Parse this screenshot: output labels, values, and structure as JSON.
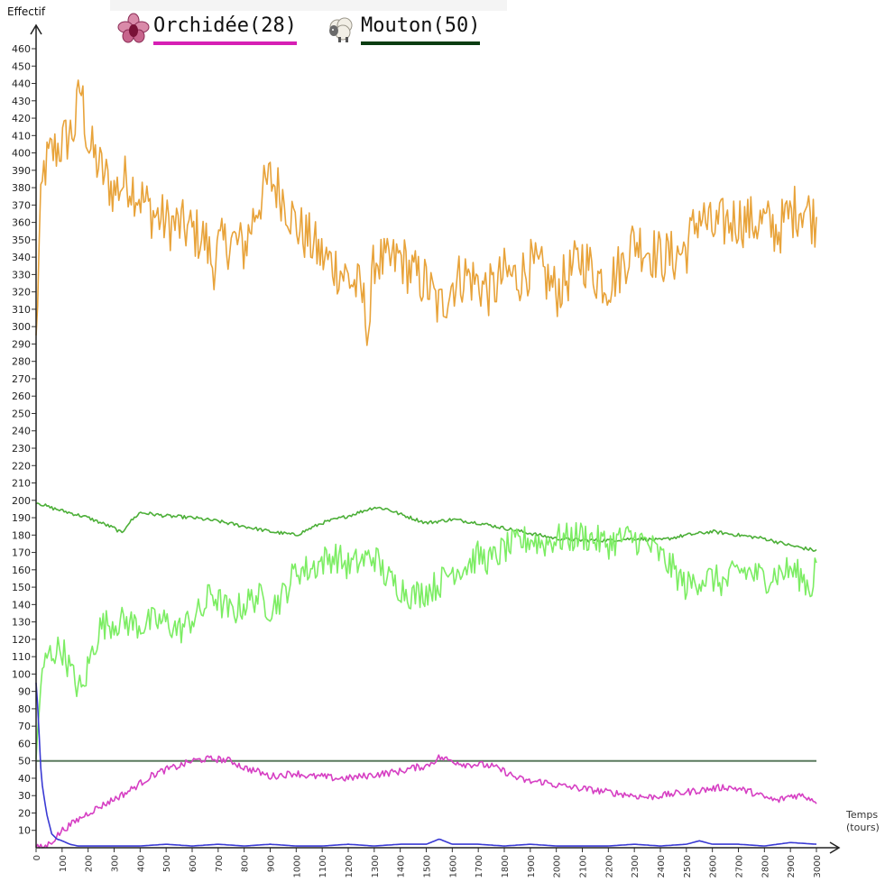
{
  "legend": {
    "items": [
      {
        "icon": "orchid-icon",
        "label": "Orchidée(28)",
        "underline": "#d61fb4"
      },
      {
        "icon": "sheep-icon",
        "label": "Mouton(50)",
        "underline": "#0a3d12"
      }
    ]
  },
  "chart_data": {
    "type": "line",
    "ylabel": "Effectif",
    "xlabel": "Temps (tours)",
    "xlabel_lines": [
      "Temps",
      "(tours)"
    ],
    "xlim": [
      0,
      3000
    ],
    "ylim": [
      0,
      460
    ],
    "yticks": [
      10,
      20,
      30,
      40,
      50,
      60,
      70,
      80,
      90,
      100,
      110,
      120,
      130,
      140,
      150,
      160,
      170,
      180,
      190,
      200,
      210,
      220,
      230,
      240,
      250,
      260,
      270,
      280,
      290,
      300,
      310,
      320,
      330,
      340,
      350,
      360,
      370,
      380,
      390,
      400,
      410,
      420,
      430,
      440,
      450,
      460
    ],
    "xticks": [
      0,
      100,
      200,
      300,
      400,
      500,
      600,
      700,
      800,
      900,
      1000,
      1100,
      1200,
      1300,
      1400,
      1500,
      1600,
      1700,
      1800,
      1900,
      2000,
      2100,
      2200,
      2300,
      2400,
      2500,
      2600,
      2700,
      2800,
      2900,
      3000
    ],
    "reference_line": {
      "y": 50,
      "color": "#5a7a5e"
    },
    "series": [
      {
        "color": "#e8a33a",
        "noise": 16,
        "x": [
          0,
          15,
          30,
          60,
          100,
          150,
          170,
          200,
          250,
          300,
          350,
          400,
          450,
          500,
          550,
          600,
          650,
          680,
          700,
          750,
          800,
          850,
          900,
          950,
          1000,
          1050,
          1100,
          1150,
          1200,
          1250,
          1280,
          1300,
          1350,
          1400,
          1450,
          1500,
          1550,
          1600,
          1650,
          1700,
          1750,
          1800,
          1850,
          1900,
          1950,
          2000,
          2050,
          2100,
          2150,
          2200,
          2250,
          2300,
          2350,
          2400,
          2450,
          2500,
          2550,
          2600,
          2650,
          2700,
          2750,
          2800,
          2850,
          2900,
          2950,
          3000
        ],
        "y": [
          290,
          360,
          390,
          400,
          405,
          415,
          440,
          405,
          390,
          378,
          385,
          375,
          365,
          360,
          358,
          355,
          350,
          335,
          345,
          350,
          345,
          370,
          385,
          375,
          358,
          350,
          340,
          335,
          328,
          320,
          298,
          340,
          335,
          340,
          330,
          325,
          310,
          325,
          330,
          325,
          320,
          330,
          328,
          335,
          330,
          320,
          330,
          340,
          330,
          325,
          335,
          350,
          345,
          340,
          340,
          345,
          365,
          355,
          360,
          362,
          360,
          360,
          355,
          365,
          370,
          360
        ]
      },
      {
        "color": "#4caf38",
        "noise": 1,
        "x": [
          0,
          50,
          100,
          150,
          200,
          250,
          300,
          330,
          350,
          400,
          450,
          500,
          600,
          700,
          800,
          900,
          1000,
          1100,
          1200,
          1300,
          1350,
          1400,
          1500,
          1600,
          1700,
          1800,
          1900,
          2000,
          2100,
          2200,
          2300,
          2400,
          2500,
          2600,
          2700,
          2800,
          2900,
          3000
        ],
        "y": [
          199,
          196,
          194,
          192,
          190,
          187,
          184,
          181,
          186,
          193,
          192,
          191,
          190,
          188,
          185,
          182,
          180,
          187,
          191,
          196,
          195,
          192,
          187,
          189,
          187,
          184,
          181,
          178,
          177,
          177,
          178,
          177,
          180,
          182,
          180,
          178,
          174,
          171
        ]
      },
      {
        "color": "#7ced63",
        "noise": 9,
        "x": [
          0,
          15,
          40,
          70,
          100,
          150,
          180,
          200,
          220,
          250,
          300,
          350,
          400,
          450,
          500,
          550,
          600,
          650,
          670,
          700,
          750,
          800,
          850,
          900,
          950,
          1000,
          1050,
          1100,
          1150,
          1200,
          1250,
          1300,
          1350,
          1400,
          1450,
          1500,
          1550,
          1600,
          1650,
          1700,
          1750,
          1800,
          1850,
          1900,
          1950,
          2000,
          2050,
          2100,
          2150,
          2200,
          2250,
          2300,
          2350,
          2400,
          2450,
          2500,
          2550,
          2600,
          2650,
          2700,
          2750,
          2800,
          2850,
          2900,
          2950,
          2980,
          3000
        ],
        "y": [
          50,
          90,
          110,
          113,
          115,
          95,
          90,
          105,
          115,
          128,
          130,
          130,
          128,
          130,
          130,
          125,
          132,
          138,
          148,
          142,
          135,
          140,
          145,
          138,
          145,
          160,
          160,
          165,
          168,
          162,
          165,
          168,
          155,
          150,
          145,
          148,
          152,
          160,
          162,
          168,
          165,
          172,
          175,
          178,
          175,
          178,
          178,
          180,
          177,
          175,
          178,
          178,
          175,
          168,
          160,
          150,
          155,
          155,
          152,
          160,
          158,
          155,
          158,
          160,
          155,
          148,
          168
        ]
      },
      {
        "color": "#d63fc3",
        "noise": 2,
        "x": [
          0,
          15,
          40,
          70,
          100,
          150,
          200,
          250,
          300,
          350,
          400,
          450,
          500,
          550,
          600,
          650,
          700,
          750,
          800,
          850,
          900,
          950,
          1000,
          1050,
          1100,
          1150,
          1200,
          1250,
          1300,
          1350,
          1400,
          1450,
          1500,
          1550,
          1600,
          1650,
          1700,
          1750,
          1800,
          1850,
          1900,
          1950,
          2000,
          2050,
          2100,
          2150,
          2200,
          2250,
          2300,
          2350,
          2400,
          2450,
          2500,
          2550,
          2600,
          2650,
          2700,
          2750,
          2800,
          2850,
          2900,
          2950,
          3000
        ],
        "y": [
          0,
          0,
          1,
          5,
          10,
          15,
          20,
          24,
          28,
          32,
          37,
          42,
          45,
          47,
          50,
          51,
          51,
          50,
          46,
          44,
          41,
          42,
          43,
          41,
          41,
          40,
          40,
          41,
          42,
          43,
          44,
          46,
          47,
          52,
          50,
          48,
          48,
          47,
          44,
          40,
          38,
          38,
          36,
          35,
          34,
          33,
          32,
          31,
          30,
          29,
          30,
          31,
          32,
          33,
          34,
          35,
          34,
          32,
          29,
          27,
          30,
          30,
          27
        ]
      },
      {
        "color": "#3a3ad4",
        "noise": 0,
        "x": [
          0,
          5,
          10,
          20,
          40,
          60,
          80,
          100,
          130,
          160,
          200,
          300,
          400,
          500,
          600,
          700,
          800,
          900,
          1000,
          1100,
          1200,
          1300,
          1400,
          1500,
          1550,
          1600,
          1700,
          1800,
          1900,
          2000,
          2100,
          2200,
          2300,
          2400,
          2500,
          2550,
          2600,
          2700,
          2800,
          2900,
          3000
        ],
        "y": [
          95,
          85,
          70,
          40,
          20,
          8,
          5,
          4,
          2,
          1,
          1,
          1,
          1,
          2,
          1,
          2,
          1,
          2,
          1,
          1,
          2,
          1,
          2,
          2,
          5,
          2,
          2,
          1,
          2,
          1,
          1,
          1,
          2,
          1,
          2,
          4,
          2,
          2,
          1,
          3,
          2
        ]
      }
    ]
  }
}
